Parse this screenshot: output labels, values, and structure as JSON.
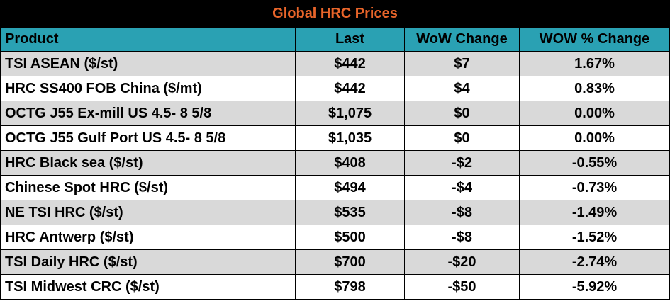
{
  "title": "Global HRC Prices",
  "columns": [
    "Product",
    "Last",
    "WoW Change",
    "WOW % Change"
  ],
  "rows": [
    {
      "product": "TSI ASEAN ($/st)",
      "last": "$442",
      "wow": "$7",
      "pct": "1.67%"
    },
    {
      "product": "HRC SS400 FOB China ($/mt)",
      "last": "$442",
      "wow": "$4",
      "pct": "0.83%"
    },
    {
      "product": "OCTG J55 Ex-mill US 4.5- 8 5/8",
      "last": "$1,075",
      "wow": "$0",
      "pct": "0.00%"
    },
    {
      "product": "OCTG J55 Gulf Port US 4.5- 8 5/8",
      "last": "$1,035",
      "wow": "$0",
      "pct": "0.00%"
    },
    {
      "product": "HRC Black sea ($/st)",
      "last": "$408",
      "wow": "-$2",
      "pct": "-0.55%"
    },
    {
      "product": "Chinese Spot HRC ($/st)",
      "last": "$494",
      "wow": "-$4",
      "pct": "-0.73%"
    },
    {
      "product": "NE TSI HRC ($/st)",
      "last": "$535",
      "wow": "-$8",
      "pct": "-1.49%"
    },
    {
      "product": "HRC Antwerp ($/st)",
      "last": "$500",
      "wow": "-$8",
      "pct": "-1.52%"
    },
    {
      "product": "TSI Daily HRC ($/st)",
      "last": "$700",
      "wow": "-$20",
      "pct": "-2.74%"
    },
    {
      "product": "TSI Midwest CRC ($/st)",
      "last": "$798",
      "wow": "-$50",
      "pct": "-5.92%"
    }
  ],
  "colors": {
    "title_bg": "#000000",
    "title_text": "#e8652a",
    "header_bg": "#2aa1b3",
    "row_alt_bg": "#d9d9d9",
    "row_bg": "#ffffff"
  }
}
